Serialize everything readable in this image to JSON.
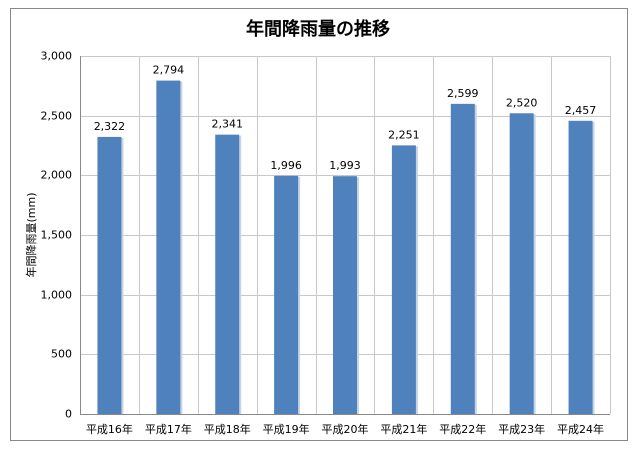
{
  "chart_data": {
    "type": "bar",
    "title": "年間降雨量の推移",
    "y_label": "年間降雨量(mm)",
    "categories": [
      "平成16年",
      "平成17年",
      "平成18年",
      "平成19年",
      "平成20年",
      "平成21年",
      "平成22年",
      "平成23年",
      "平成24年"
    ],
    "values": [
      2322,
      2794,
      2341,
      1996,
      1993,
      2251,
      2599,
      2520,
      2457
    ],
    "value_labels": [
      "2,322",
      "2,794",
      "2,341",
      "1,996",
      "1,993",
      "2,251",
      "2,599",
      "2,520",
      "2,457"
    ],
    "color": "#4f81bd",
    "ylim": [
      0,
      3000
    ],
    "yticks": [
      0,
      500,
      {
        "value": 1000,
        "label": "1,000"
      },
      {
        "value": 1500,
        "label": "1,500"
      },
      {
        "value": 2000,
        "label": "2,000"
      },
      {
        "value": 2500,
        "label": "2,500"
      },
      {
        "value": 3000,
        "label": "3,000"
      }
    ],
    "grid": true
  }
}
